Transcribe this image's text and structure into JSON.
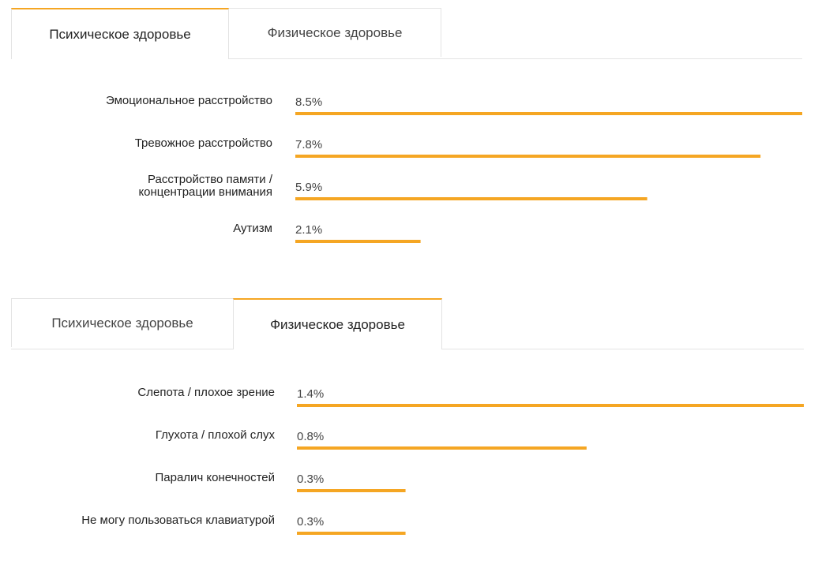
{
  "panels": [
    {
      "tabs": [
        {
          "label": "Психическое здоровье",
          "active": true
        },
        {
          "label": "Физическое здоровье",
          "active": false
        }
      ]
    },
    {
      "tabs": [
        {
          "label": "Психическое здоровье",
          "active": false
        },
        {
          "label": "Физическое здоровье",
          "active": true
        }
      ]
    }
  ],
  "colors": {
    "bar": "#f5a623",
    "accent": "#f5a623",
    "label": "#222222",
    "value": "#444444"
  },
  "chart_data": [
    {
      "type": "bar",
      "orientation": "horizontal",
      "categories": [
        "Эмоциональное расстройство",
        "Тревожное расстройство",
        "Расстройство памяти / концентрации внимания",
        "Аутизм"
      ],
      "values": [
        8.5,
        7.8,
        5.9,
        2.1
      ],
      "value_labels": [
        "8.5%",
        "7.8%",
        "5.9%",
        "2.1%"
      ],
      "unit": "%",
      "xlim": [
        0,
        8.5
      ]
    },
    {
      "type": "bar",
      "orientation": "horizontal",
      "categories": [
        "Слепота / плохое зрение",
        "Глухота / плохой слух",
        "Паралич конечностей",
        "Не могу пользоваться клавиатурой"
      ],
      "values": [
        1.4,
        0.8,
        0.3,
        0.3
      ],
      "value_labels": [
        "1.4%",
        "0.8%",
        "0.3%",
        "0.3%"
      ],
      "unit": "%",
      "xlim": [
        0,
        1.4
      ]
    }
  ]
}
